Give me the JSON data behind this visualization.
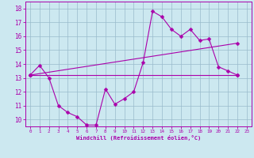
{
  "xlabel": "Windchill (Refroidissement éolien,°C)",
  "bg_color": "#cce8f0",
  "line_color": "#aa00aa",
  "grid_color": "#99bbcc",
  "xlim": [
    -0.5,
    23.5
  ],
  "ylim": [
    9.5,
    18.5
  ],
  "xticks": [
    0,
    1,
    2,
    3,
    4,
    5,
    6,
    7,
    8,
    9,
    10,
    11,
    12,
    13,
    14,
    15,
    16,
    17,
    18,
    19,
    20,
    21,
    22,
    23
  ],
  "yticks": [
    10,
    11,
    12,
    13,
    14,
    15,
    16,
    17,
    18
  ],
  "series0_x": [
    0,
    1,
    2,
    3,
    4,
    5,
    6,
    7,
    8,
    9,
    10,
    11,
    12,
    13,
    14,
    15,
    16,
    17,
    18,
    19,
    20,
    21,
    22
  ],
  "series0_y": [
    13.2,
    13.9,
    13.0,
    11.0,
    10.5,
    10.2,
    9.6,
    9.6,
    12.2,
    11.1,
    11.5,
    12.0,
    14.1,
    17.8,
    17.4,
    16.5,
    16.0,
    16.5,
    15.7,
    15.8,
    13.8,
    13.5,
    13.2
  ],
  "series1_x": [
    0,
    22
  ],
  "series1_y": [
    13.2,
    15.5
  ],
  "series2_x": [
    0,
    22
  ],
  "series2_y": [
    13.2,
    13.2
  ]
}
